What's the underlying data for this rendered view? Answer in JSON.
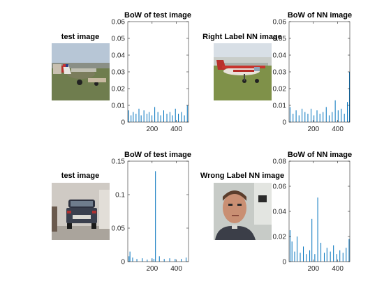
{
  "figure": {
    "panels": [
      {
        "kind": "image",
        "title": "test image",
        "scene": "airplane"
      },
      {
        "kind": "histogram",
        "title": "BoW of test image",
        "chart": 0
      },
      {
        "kind": "image",
        "title": "Right Label NN image",
        "scene": "airplane"
      },
      {
        "kind": "histogram",
        "title": "BoW of NN image",
        "chart": 1
      },
      {
        "kind": "image",
        "title": "test image",
        "scene": "car"
      },
      {
        "kind": "histogram",
        "title": "BoW of test image",
        "chart": 2
      },
      {
        "kind": "image",
        "title": "Wrong Label NN image",
        "scene": "face"
      },
      {
        "kind": "histogram",
        "title": "BoW of NN image",
        "chart": 3
      }
    ],
    "colors": {
      "bar": "#0072bd",
      "axis": "#262626",
      "title": "#000000"
    }
  },
  "chart_data": [
    {
      "type": "bar",
      "title": "BoW of test image",
      "xlim": [
        0,
        500
      ],
      "ylim": [
        0,
        0.06
      ],
      "xticks": [
        200,
        400
      ],
      "yticks": [
        0,
        0.01,
        0.02,
        0.03,
        0.04,
        0.05,
        0.06
      ],
      "ytick_labels": [
        "0",
        "0.01",
        "0.02",
        "0.03",
        "0.04",
        "0.05",
        "0.06"
      ],
      "x": [
        8,
        27,
        45,
        68,
        92,
        110,
        133,
        158,
        176,
        199,
        222,
        248,
        271,
        296,
        322,
        347,
        368,
        392,
        417,
        442,
        466,
        490
      ],
      "values": [
        0.007,
        0.004,
        0.006,
        0.005,
        0.008,
        0.004,
        0.007,
        0.005,
        0.006,
        0.004,
        0.009,
        0.006,
        0.004,
        0.007,
        0.005,
        0.006,
        0.004,
        0.008,
        0.005,
        0.006,
        0.004,
        0.01
      ]
    },
    {
      "type": "bar",
      "title": "BoW of NN image",
      "xlim": [
        0,
        500
      ],
      "ylim": [
        0,
        0.06
      ],
      "xticks": [
        200,
        400
      ],
      "yticks": [
        0,
        0.01,
        0.02,
        0.03,
        0.04,
        0.05,
        0.06
      ],
      "ytick_labels": [
        "0",
        "0.01",
        "0.02",
        "0.03",
        "0.04",
        "0.05",
        "0.06"
      ],
      "x": [
        8,
        33,
        58,
        82,
        107,
        131,
        155,
        181,
        205,
        230,
        254,
        280,
        306,
        330,
        355,
        380,
        404,
        430,
        455,
        480,
        497
      ],
      "values": [
        0.009,
        0.005,
        0.007,
        0.004,
        0.008,
        0.006,
        0.005,
        0.008,
        0.004,
        0.007,
        0.005,
        0.006,
        0.009,
        0.004,
        0.006,
        0.013,
        0.007,
        0.008,
        0.005,
        0.012,
        0.03
      ]
    },
    {
      "type": "bar",
      "title": "BoW of test image",
      "xlim": [
        0,
        500
      ],
      "ylim": [
        0,
        0.15
      ],
      "xticks": [
        200,
        400
      ],
      "yticks": [
        0,
        0.05,
        0.1,
        0.15
      ],
      "ytick_labels": [
        "0",
        "0.05",
        "0.1",
        "0.15"
      ],
      "x": [
        10,
        18,
        40,
        75,
        120,
        160,
        200,
        215,
        228,
        260,
        300,
        345,
        390,
        440,
        480
      ],
      "values": [
        0.008,
        0.015,
        0.006,
        0.004,
        0.005,
        0.003,
        0.005,
        0.004,
        0.135,
        0.008,
        0.004,
        0.005,
        0.004,
        0.004,
        0.006
      ]
    },
    {
      "type": "bar",
      "title": "BoW of NN image",
      "xlim": [
        0,
        500
      ],
      "ylim": [
        0,
        0.08
      ],
      "xticks": [
        200,
        400
      ],
      "yticks": [
        0,
        0.02,
        0.04,
        0.06,
        0.08
      ],
      "ytick_labels": [
        "0",
        "0.02",
        "0.04",
        "0.06",
        "0.08"
      ],
      "x": [
        8,
        24,
        46,
        66,
        92,
        118,
        142,
        170,
        188,
        212,
        236,
        262,
        290,
        312,
        340,
        366,
        392,
        418,
        444,
        470,
        494
      ],
      "values": [
        0.025,
        0.016,
        0.008,
        0.02,
        0.007,
        0.012,
        0.006,
        0.009,
        0.034,
        0.006,
        0.051,
        0.015,
        0.007,
        0.011,
        0.008,
        0.013,
        0.006,
        0.009,
        0.007,
        0.011,
        0.018
      ]
    }
  ]
}
